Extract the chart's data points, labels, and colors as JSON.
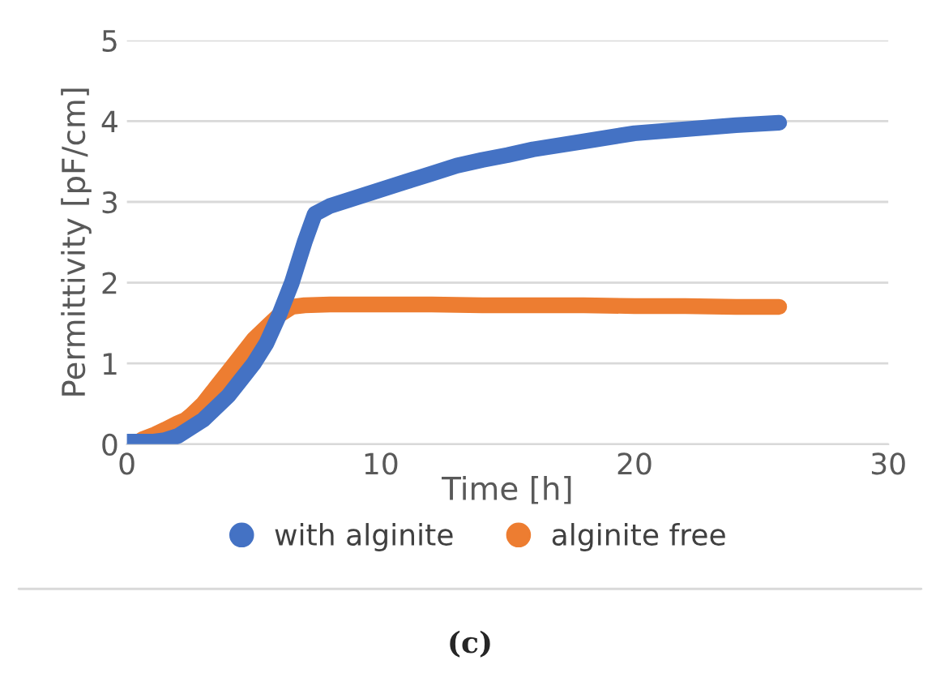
{
  "chart_data": {
    "type": "line",
    "xlabel": "Time [h]",
    "ylabel": "Permittivity [pF/cm]",
    "annotations": [
      "(c)"
    ],
    "series": [
      {
        "name": "with alginite",
        "color": "#4472c4",
        "x": [
          0,
          0.5,
          1,
          1.5,
          2,
          2.5,
          3,
          3.5,
          4,
          4.5,
          5,
          5.5,
          6,
          6.5,
          7,
          7.4,
          8,
          9,
          10,
          11,
          12,
          13,
          14,
          15,
          16,
          18,
          20,
          22,
          24,
          25.7
        ],
        "values": [
          0.03,
          0.03,
          0.03,
          0.05,
          0.1,
          0.2,
          0.3,
          0.45,
          0.6,
          0.8,
          1.0,
          1.25,
          1.6,
          2.0,
          2.5,
          2.85,
          2.95,
          3.05,
          3.15,
          3.25,
          3.35,
          3.45,
          3.52,
          3.58,
          3.65,
          3.75,
          3.85,
          3.9,
          3.95,
          3.98
        ]
      },
      {
        "name": "alginite free",
        "color": "#ed7d31",
        "x": [
          0.6,
          1.1,
          1.5,
          2,
          2.3,
          2.5,
          3,
          3.5,
          4,
          4.5,
          5,
          5.5,
          6,
          6.5,
          7,
          8,
          10,
          12,
          14,
          16,
          18,
          20,
          22,
          24,
          25.7
        ],
        "values": [
          0.06,
          0.12,
          0.18,
          0.26,
          0.3,
          0.35,
          0.5,
          0.7,
          0.9,
          1.1,
          1.3,
          1.45,
          1.6,
          1.7,
          1.72,
          1.73,
          1.73,
          1.73,
          1.72,
          1.72,
          1.72,
          1.71,
          1.71,
          1.7,
          1.7
        ]
      }
    ],
    "xlim": [
      0,
      30
    ],
    "xticks": [
      0,
      10,
      20,
      30
    ],
    "ylim": [
      0,
      5
    ],
    "yticks": [
      0,
      1,
      2,
      3,
      4,
      5
    ],
    "grid": "y",
    "legend": "bottom",
    "marker": "none",
    "line_style": "solid"
  }
}
